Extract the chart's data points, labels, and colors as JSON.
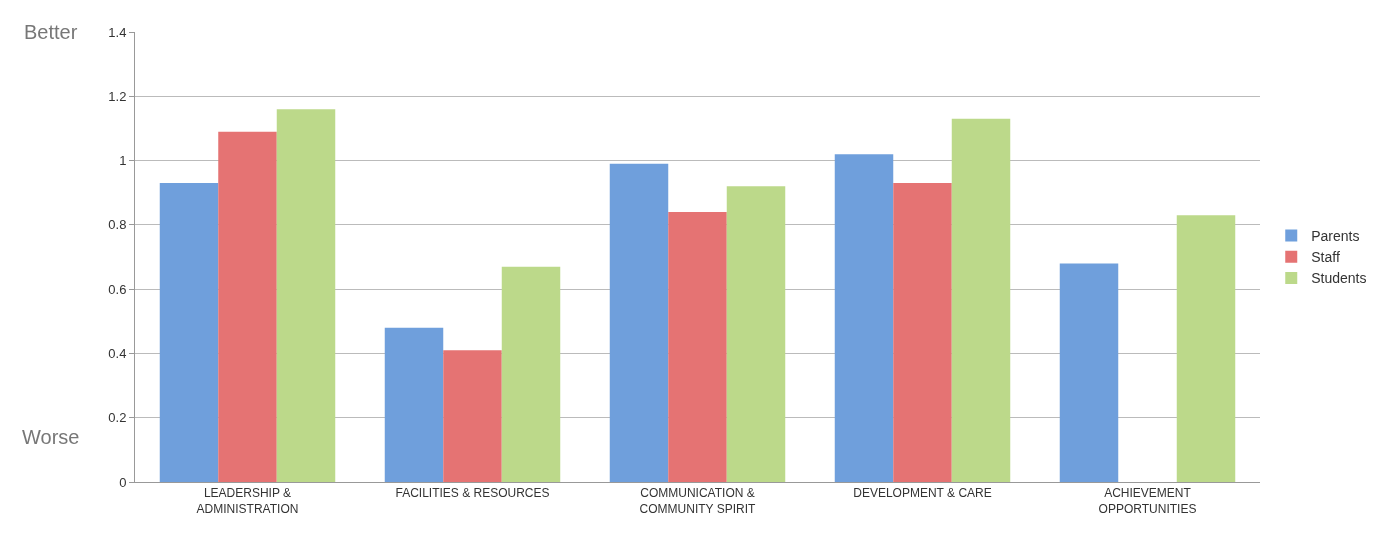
{
  "chart_data": {
    "type": "bar",
    "categories": [
      "LEADERSHIP & ADMINISTRATION",
      "FACILITIES & RESOURCES",
      "COMMUNICATION & COMMUNITY SPIRIT",
      "DEVELOPMENT & CARE",
      "ACHIEVEMENT OPPORTUNITIES"
    ],
    "series": [
      {
        "name": "Parents",
        "color": "#6f9fdc",
        "values": [
          0.93,
          0.48,
          0.99,
          1.02,
          0.68
        ]
      },
      {
        "name": "Staff",
        "color": "#e57373",
        "values": [
          1.09,
          0.41,
          0.84,
          0.93,
          null
        ]
      },
      {
        "name": "Students",
        "color": "#bcd98a",
        "values": [
          1.16,
          0.67,
          0.92,
          1.13,
          0.83
        ]
      }
    ],
    "ylim": [
      0,
      1.4
    ],
    "yticks": [
      0,
      0.2,
      0.4,
      0.6,
      0.8,
      1,
      1.2,
      1.4
    ],
    "grid": "y",
    "legend": "right",
    "annotations": [
      "Better",
      "Worse"
    ]
  }
}
